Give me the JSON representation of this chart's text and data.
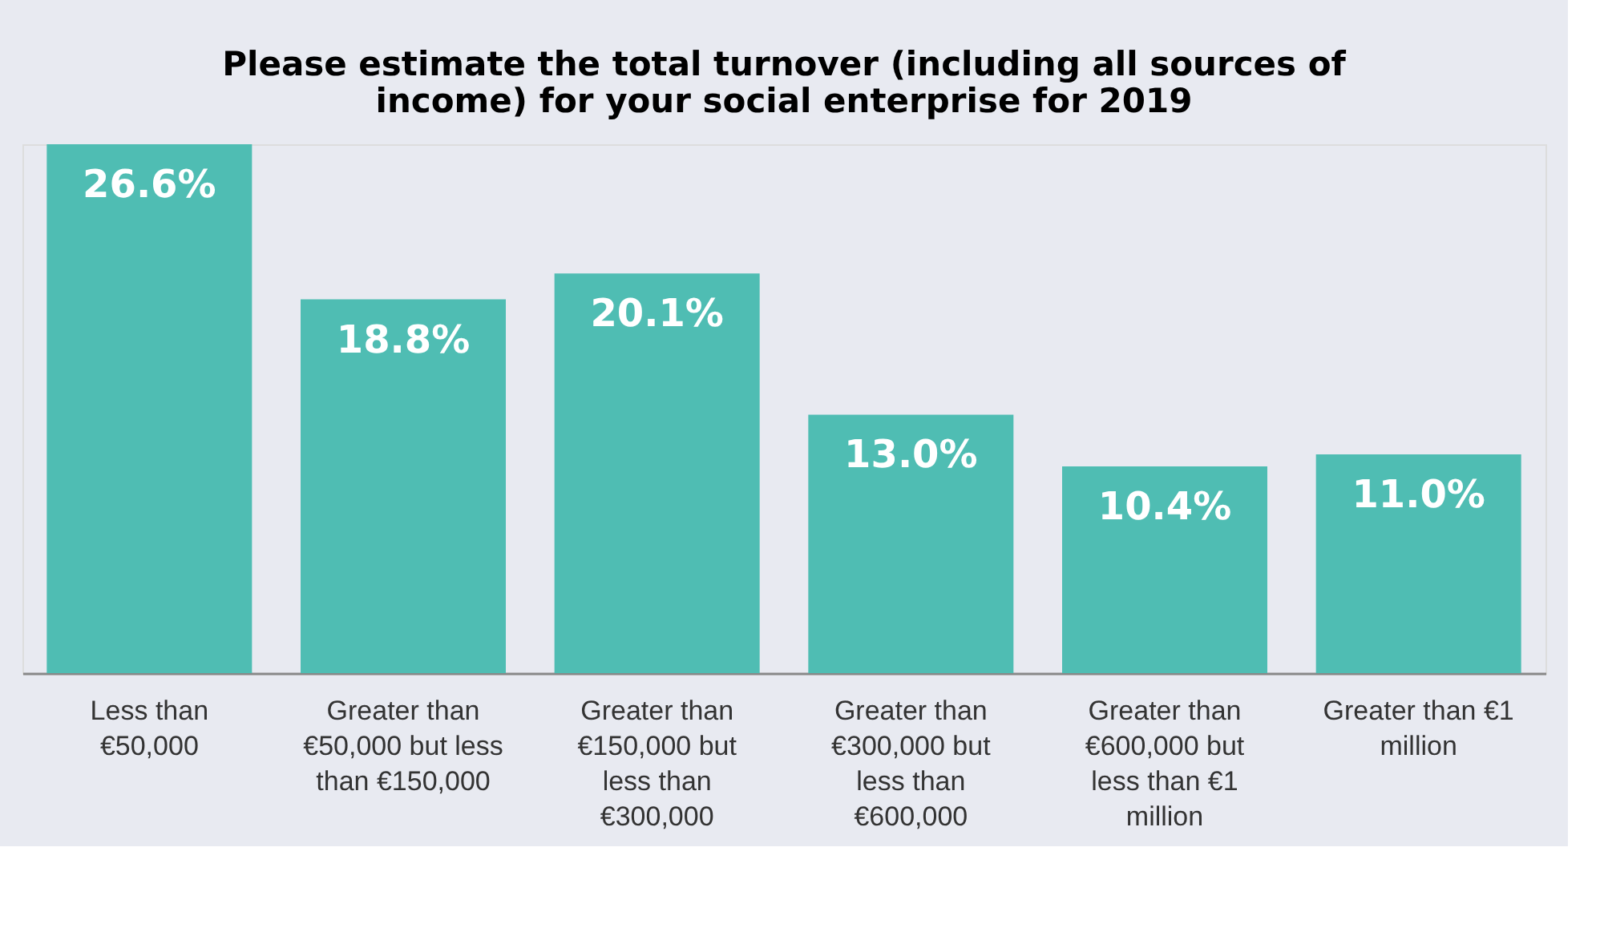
{
  "chart_data": {
    "type": "bar",
    "title": "Please estimate the total turnover (including all sources of income) for your social enterprise for 2019",
    "categories": [
      "Less than €50,000",
      "Greater than €50,000 but less than €150,000",
      "Greater than €150,000 but less than €300,000",
      "Greater than €300,000 but less than €600,000",
      "Greater than €600,000 but less than €1 million",
      "Greater than €1 million"
    ],
    "values": [
      26.6,
      18.8,
      20.1,
      13.0,
      10.4,
      11.0
    ],
    "value_labels": [
      "26.6%",
      "18.8%",
      "20.1%",
      "13.0%",
      "10.4%",
      "11.0%"
    ],
    "color": "#4fbdb3",
    "grid": false
  }
}
